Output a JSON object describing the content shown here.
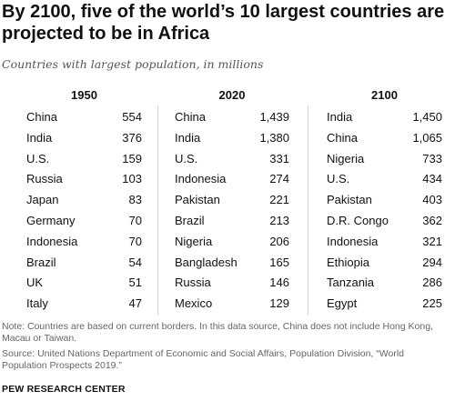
{
  "title": "By 2100, five of the world’s 10 largest countries are projected to be in Africa",
  "subtitle": "Countries with largest population, in millions",
  "note": "Note: Countries are based on current borders. In this data source, China does not include Hong Kong, Macau or Taiwan.",
  "source": "Source: United Nations Department of Economic and Social Affairs, Population Division, “World Population Prospects 2019.”",
  "brand": "PEW RESEARCH CENTER",
  "chart_data": {
    "type": "table",
    "title": "By 2100, five of the world’s 10 largest countries are projected to be in Africa",
    "subtitle": "Countries with largest population, in millions",
    "columns": [
      {
        "year": "1950",
        "rows": [
          {
            "country": "China",
            "value": "554"
          },
          {
            "country": "India",
            "value": "376"
          },
          {
            "country": "U.S.",
            "value": "159"
          },
          {
            "country": "Russia",
            "value": "103"
          },
          {
            "country": "Japan",
            "value": "83"
          },
          {
            "country": "Germany",
            "value": "70"
          },
          {
            "country": "Indonesia",
            "value": "70"
          },
          {
            "country": "Brazil",
            "value": "54"
          },
          {
            "country": "UK",
            "value": "51"
          },
          {
            "country": "Italy",
            "value": "47"
          }
        ]
      },
      {
        "year": "2020",
        "rows": [
          {
            "country": "China",
            "value": "1,439"
          },
          {
            "country": "India",
            "value": "1,380"
          },
          {
            "country": "U.S.",
            "value": "331"
          },
          {
            "country": "Indonesia",
            "value": "274"
          },
          {
            "country": "Pakistan",
            "value": "221"
          },
          {
            "country": "Brazil",
            "value": "213"
          },
          {
            "country": "Nigeria",
            "value": "206"
          },
          {
            "country": "Bangladesh",
            "value": "165"
          },
          {
            "country": "Russia",
            "value": "146"
          },
          {
            "country": "Mexico",
            "value": "129"
          }
        ]
      },
      {
        "year": "2100",
        "rows": [
          {
            "country": "India",
            "value": "1,450"
          },
          {
            "country": "China",
            "value": "1,065"
          },
          {
            "country": "Nigeria",
            "value": "733"
          },
          {
            "country": "U.S.",
            "value": "434"
          },
          {
            "country": "Pakistan",
            "value": "403"
          },
          {
            "country": "D.R. Congo",
            "value": "362"
          },
          {
            "country": "Indonesia",
            "value": "321"
          },
          {
            "country": "Ethiopia",
            "value": "294"
          },
          {
            "country": "Tanzania",
            "value": "286"
          },
          {
            "country": "Egypt",
            "value": "225"
          }
        ]
      }
    ]
  }
}
